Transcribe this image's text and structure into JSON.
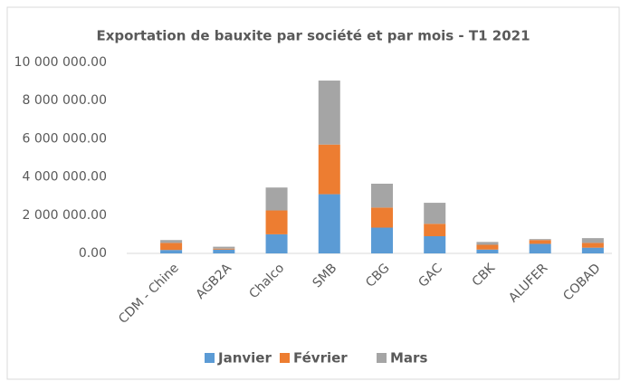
{
  "chart_data": {
    "type": "stacked_bar",
    "title": "Exportation de bauxite par société et par mois - T1 2021",
    "categories": [
      "CDM - Chine",
      "AGB2A",
      "Chalco",
      "SMB",
      "CBG",
      "GAC",
      "CBK",
      "ALUFER",
      "COBAD"
    ],
    "series": [
      {
        "name": "Janvier",
        "color": "#5b9bd5",
        "values": [
          180000,
          200000,
          1000000,
          3100000,
          1350000,
          900000,
          200000,
          500000,
          300000
        ]
      },
      {
        "name": "Février",
        "color": "#ed7d31",
        "values": [
          370000,
          50000,
          1250000,
          2600000,
          1050000,
          650000,
          250000,
          200000,
          250000
        ]
      },
      {
        "name": "Mars",
        "color": "#a5a5a5",
        "values": [
          150000,
          100000,
          1200000,
          3350000,
          1250000,
          1100000,
          150000,
          50000,
          250000
        ]
      }
    ],
    "ylim": [
      0,
      10000000
    ],
    "yticks": [
      {
        "value": 0,
        "label": "0.00"
      },
      {
        "value": 2000000,
        "label": "2 000 000.00"
      },
      {
        "value": 4000000,
        "label": "4 000 000.00"
      },
      {
        "value": 6000000,
        "label": "6 000 000.00"
      },
      {
        "value": 8000000,
        "label": "8 000 000.00"
      },
      {
        "value": 10000000,
        "label": "10 000 000.00"
      }
    ],
    "grid": false,
    "legend": "bottom"
  }
}
